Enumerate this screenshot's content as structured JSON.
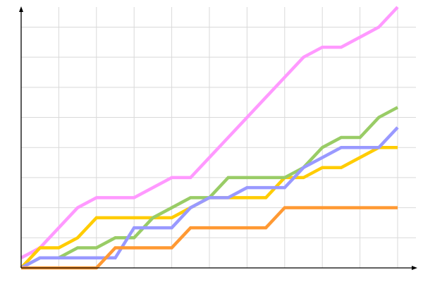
{
  "chart_data": {
    "type": "line",
    "title": "",
    "xlabel": "",
    "ylabel": "",
    "x": [
      0,
      1,
      2,
      3,
      4,
      5,
      6,
      7,
      8,
      9,
      10,
      11,
      12,
      13,
      14,
      15,
      16,
      17,
      18,
      19,
      20
    ],
    "xlim": [
      0,
      21
    ],
    "ylim": [
      0,
      26
    ],
    "x_grid_step": 2,
    "y_grid_step": 3,
    "grid": true,
    "legend": "none",
    "series": [
      {
        "color": "#ff99ff",
        "values": [
          1,
          2,
          4,
          6,
          7,
          7,
          7,
          8,
          9,
          9,
          11,
          13,
          15,
          17,
          19,
          21,
          22,
          22,
          23,
          24,
          26
        ]
      },
      {
        "color": "#ffcc00",
        "values": [
          0,
          2,
          2,
          3,
          5,
          5,
          5,
          5,
          5,
          6,
          7,
          7,
          7,
          7,
          9,
          9,
          10,
          10,
          11,
          12,
          12
        ]
      },
      {
        "color": "#99cc66",
        "values": [
          0,
          1,
          1,
          2,
          2,
          3,
          3,
          5,
          6,
          7,
          7,
          9,
          9,
          9,
          9,
          10,
          12,
          13,
          13,
          15,
          16
        ]
      },
      {
        "color": "#9999ff",
        "values": [
          0,
          1,
          1,
          1,
          1,
          1,
          4,
          4,
          4,
          6,
          7,
          7,
          8,
          8,
          8,
          10,
          11,
          12,
          12,
          12,
          14
        ]
      },
      {
        "color": "#ff9933",
        "values": [
          0,
          0,
          0,
          0,
          0,
          2,
          2,
          2,
          2,
          4,
          4,
          4,
          4,
          4,
          6,
          6,
          6,
          6,
          6,
          6,
          6
        ]
      }
    ]
  }
}
